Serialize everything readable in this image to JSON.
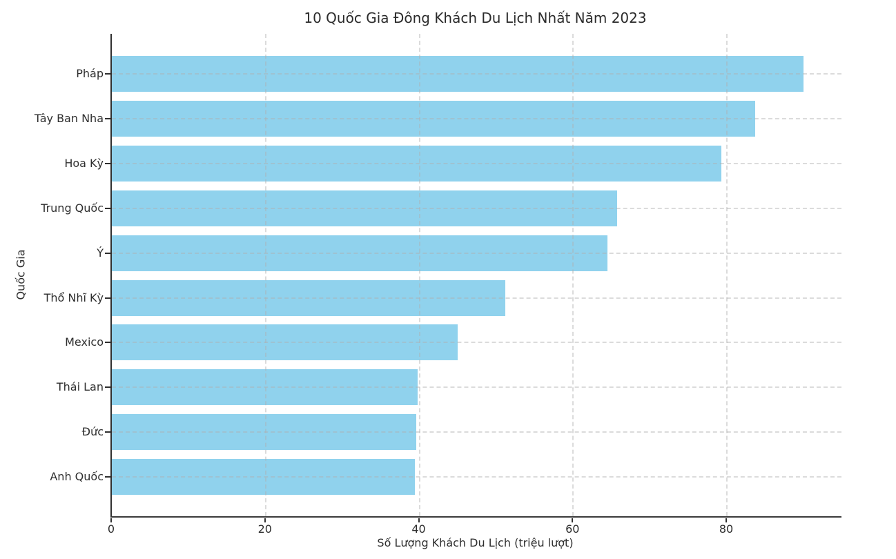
{
  "chart_data": {
    "type": "bar",
    "orientation": "horizontal",
    "title": "10 Quốc Gia Đông Khách Du Lịch Nhất Năm 2023",
    "xlabel": "Số Lượng Khách Du Lịch (triệu lượt)",
    "ylabel": "Quốc Gia",
    "categories": [
      "Pháp",
      "Tây Ban Nha",
      "Hoa Kỳ",
      "Trung Quốc",
      "Ý",
      "Thổ Nhĩ Kỳ",
      "Mexico",
      "Thái Lan",
      "Đức",
      "Anh Quốc"
    ],
    "values": [
      90.0,
      83.7,
      79.3,
      65.7,
      64.5,
      51.2,
      45.0,
      39.8,
      39.6,
      39.4
    ],
    "x_ticks": [
      0,
      20,
      40,
      60,
      80
    ],
    "xlim": [
      0,
      94.9
    ],
    "bar_color": "#87CEEB",
    "bar_alpha": 0.92,
    "grid": "both, dashed, light-gray, drawn over bars",
    "legend_position": "none",
    "spines": [
      "left",
      "bottom"
    ]
  }
}
